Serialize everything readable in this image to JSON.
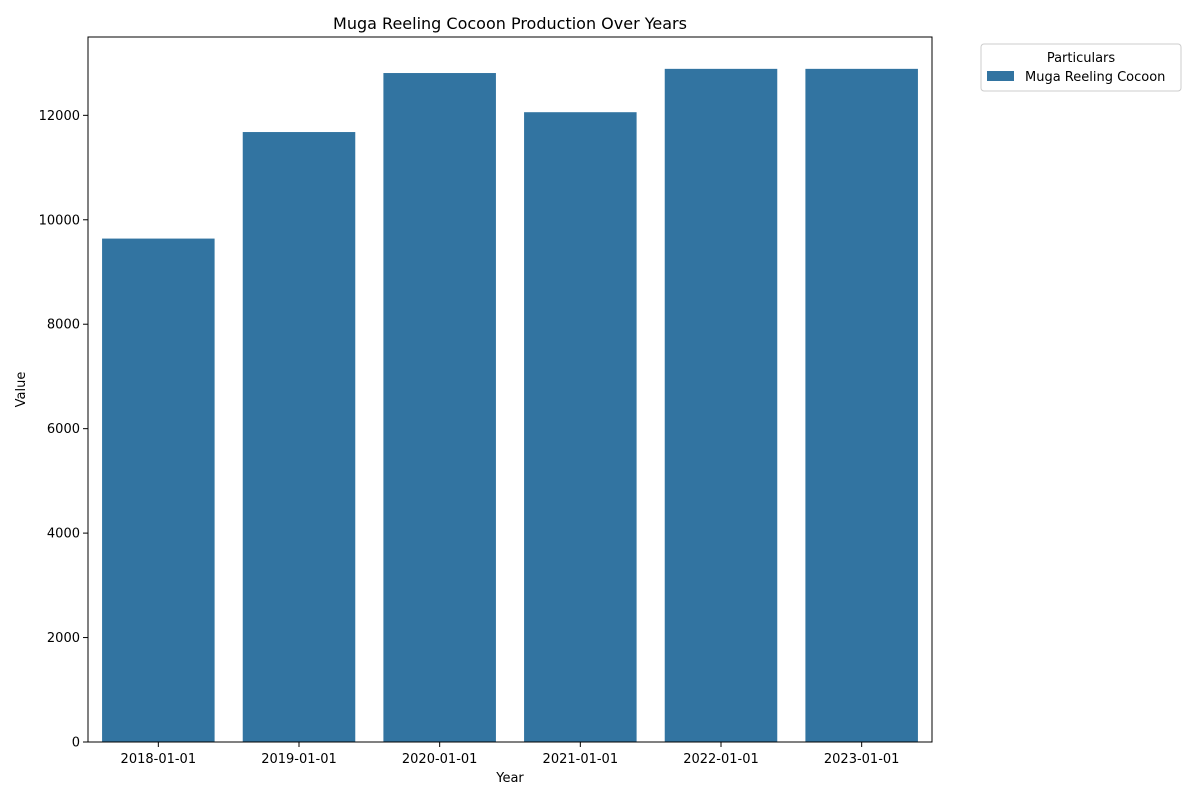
{
  "chart_data": {
    "type": "bar",
    "title": "Muga Reeling Cocoon Production Over Years",
    "xlabel": "Year",
    "ylabel": "Value",
    "categories": [
      "2018-01-01",
      "2019-01-01",
      "2020-01-01",
      "2021-01-01",
      "2022-01-01",
      "2023-01-01"
    ],
    "series": [
      {
        "name": "Muga Reeling Cocoon",
        "values": [
          9640,
          11680,
          12810,
          12060,
          12890,
          12890
        ],
        "color": "#3274a1"
      }
    ],
    "ylim": [
      0,
      13500
    ],
    "yticks": [
      0,
      2000,
      4000,
      6000,
      8000,
      10000,
      12000
    ],
    "grid": false,
    "legend": {
      "title": "Particulars",
      "placement": "outside-top-right"
    }
  }
}
